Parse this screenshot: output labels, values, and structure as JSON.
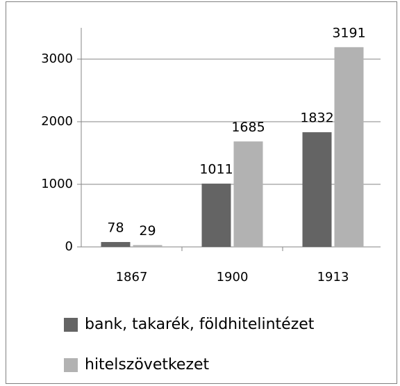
{
  "chart_data": {
    "type": "bar",
    "categories": [
      "1867",
      "1900",
      "1913"
    ],
    "series": [
      {
        "name": "bank, takarék, földhitelintézet",
        "color": "#646464",
        "values": [
          78,
          1011,
          1832
        ]
      },
      {
        "name": "hitelszövetkezet",
        "color": "#b2b2b2",
        "values": [
          29,
          1685,
          3191
        ]
      }
    ],
    "ylim": [
      0,
      3500
    ],
    "yticks": [
      0,
      1000,
      2000,
      3000
    ],
    "grid": true,
    "legend": "bottom"
  }
}
